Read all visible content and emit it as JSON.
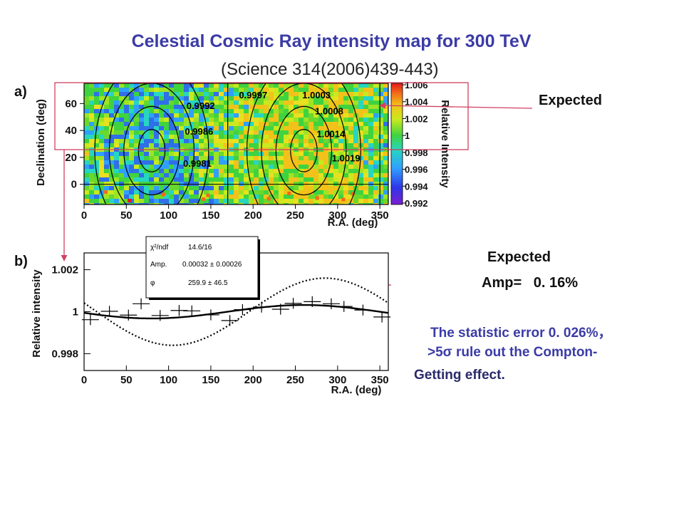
{
  "slide": {
    "title": "Celestial Cosmic Ray intensity map for 300 TeV",
    "subtitle": "(Science 314(2006)439-443)",
    "panel_a_tag": "a)",
    "panel_b_tag": "b)",
    "expected_a": "Expected",
    "expected_b": "Expected",
    "amp_text": "Amp=   0. 16%",
    "note_line1": "The statistic error 0. 026%，",
    "note_line2": ">5σ rule out the Compton-",
    "note_line3": "Getting effect.",
    "arrow_color": "#d04060"
  },
  "chart_data": [
    {
      "type": "heatmap",
      "xlabel": "R.A. (deg)",
      "ylabel": "Declination (deg)",
      "colorbar_label": "Relative Intensity",
      "xlim": [
        0,
        360
      ],
      "ylim": [
        -15,
        75
      ],
      "x_ticks": [
        0,
        50,
        100,
        150,
        200,
        250,
        300,
        350
      ],
      "y_ticks": [
        0,
        20,
        40,
        60
      ],
      "colorbar_range": [
        0.992,
        1.006
      ],
      "colorbar_ticks": [
        "1.006",
        "1.004",
        "1.002",
        "1",
        "0.998",
        "0.996",
        "0.994",
        "0.992"
      ],
      "contour_labels": [
        {
          "text": "0.9997",
          "ra": 200,
          "dec": 64
        },
        {
          "text": "1.0003",
          "ra": 275,
          "dec": 64
        },
        {
          "text": "0.9992",
          "ra": 138,
          "dec": 56
        },
        {
          "text": "1.0008",
          "ra": 290,
          "dec": 52
        },
        {
          "text": "0.9986",
          "ra": 136,
          "dec": 37
        },
        {
          "text": "1.0014",
          "ra": 292,
          "dec": 35
        },
        {
          "text": "0.9981",
          "ra": 134,
          "dec": 13
        },
        {
          "text": "1.0019",
          "ra": 310,
          "dec": 17
        }
      ],
      "contour_centers": [
        {
          "ra": 80,
          "dec": 25
        },
        {
          "ra": 260,
          "dec": 25
        }
      ]
    },
    {
      "type": "scatter",
      "xlabel": "R.A. (deg)",
      "ylabel": "Relative intensity",
      "xlim": [
        0,
        360
      ],
      "ylim": [
        0.9972,
        1.0028
      ],
      "x_ticks": [
        0,
        50,
        100,
        150,
        200,
        250,
        300,
        350
      ],
      "y_ticks": [
        0.998,
        1,
        1.002
      ],
      "y_tick_labels": [
        "0.998",
        "1",
        "1.002"
      ],
      "fit_box": {
        "row1_label": "χ²/ndf",
        "row1_value": "14.6/16",
        "row2_label": "Amp.",
        "row2_value": "0.00032 ± 0.00026",
        "row3_label": "φ",
        "row3_value": "259.9 ± 46.5"
      },
      "points": [
        {
          "x": 7.5,
          "y": 0.99962,
          "err": 0.00026
        },
        {
          "x": 30,
          "y": 1.00002,
          "err": 0.00026
        },
        {
          "x": 52.5,
          "y": 0.99984,
          "err": 0.00026
        },
        {
          "x": 67.5,
          "y": 1.00038,
          "err": 0.00026
        },
        {
          "x": 90,
          "y": 0.99982,
          "err": 0.00026
        },
        {
          "x": 112.5,
          "y": 1.00006,
          "err": 0.00026
        },
        {
          "x": 127.5,
          "y": 1.00004,
          "err": 0.00026
        },
        {
          "x": 150,
          "y": 0.99985,
          "err": 0.00026
        },
        {
          "x": 172.5,
          "y": 0.99958,
          "err": 0.00026
        },
        {
          "x": 187.5,
          "y": 1.0001,
          "err": 0.00026
        },
        {
          "x": 210,
          "y": 1.00022,
          "err": 0.00026
        },
        {
          "x": 232.5,
          "y": 1.00012,
          "err": 0.00026
        },
        {
          "x": 247.5,
          "y": 1.0004,
          "err": 0.00026
        },
        {
          "x": 270,
          "y": 1.00048,
          "err": 0.00026
        },
        {
          "x": 292.5,
          "y": 1.00038,
          "err": 0.00026
        },
        {
          "x": 307.5,
          "y": 1.00025,
          "err": 0.00026
        },
        {
          "x": 330,
          "y": 1.00008,
          "err": 0.00026
        },
        {
          "x": 352.5,
          "y": 0.99975,
          "err": 0.00026
        }
      ],
      "series": [
        {
          "style": "solid",
          "offset": 1.0,
          "amp": 0.00032,
          "phase_deg": 259.9
        },
        {
          "style": "dotted",
          "offset": 1.0,
          "amp": 0.0016,
          "phase_deg": 285
        }
      ]
    }
  ]
}
